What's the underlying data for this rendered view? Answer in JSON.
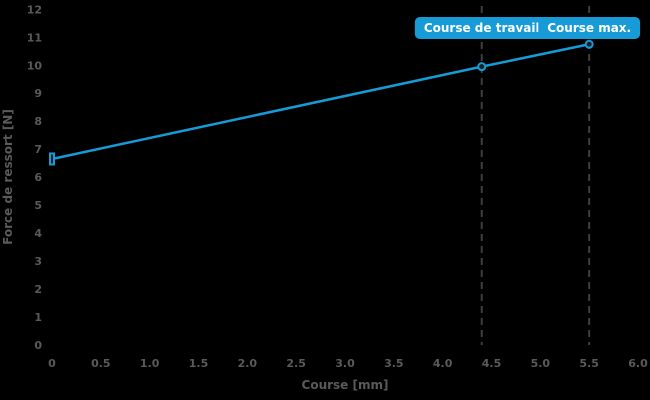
{
  "chart_data": {
    "type": "line",
    "title": "",
    "xlabel": "Course [mm]",
    "ylabel": "Force de ressort [N]",
    "xlim": [
      0,
      6.0
    ],
    "ylim": [
      0,
      12
    ],
    "x_ticks": [
      0,
      0.5,
      1.0,
      1.5,
      2.0,
      2.5,
      3.0,
      3.5,
      4.0,
      4.5,
      5.0,
      5.5,
      6.0
    ],
    "x_tick_labels": [
      "0",
      "0.5",
      "1.0",
      "1.5",
      "2.0",
      "2.5",
      "3.0",
      "3.5",
      "4.0",
      "4.5",
      "5.0",
      "5.5",
      "6.0"
    ],
    "y_ticks": [
      0,
      1,
      2,
      3,
      4,
      5,
      6,
      7,
      8,
      9,
      10,
      11,
      12
    ],
    "y_tick_labels": [
      "0",
      "1",
      "2",
      "3",
      "4",
      "5",
      "6",
      "7",
      "8",
      "9",
      "10",
      "11",
      "12"
    ],
    "grid": false,
    "legend": false,
    "series": [
      {
        "name": "Force de ressort",
        "x": [
          0,
          4.4,
          5.5
        ],
        "y": [
          6.65,
          9.95,
          10.75
        ]
      }
    ],
    "annotations": [
      {
        "label": "Course de travail",
        "x": 4.4
      },
      {
        "label": "Course max.",
        "x": 5.5
      }
    ]
  },
  "colors": {
    "background": "#000000",
    "line": "#169bd7",
    "marker_fill": "#1e1e1e",
    "dashed_line": "#3e3e3e",
    "axis_text": "#5a5a5a",
    "badge_bg": "#169bd7",
    "badge_text": "#ffffff"
  }
}
